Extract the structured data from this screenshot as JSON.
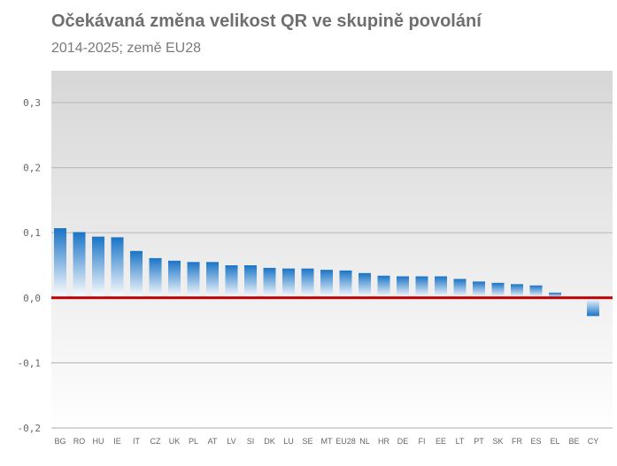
{
  "chart_data": {
    "type": "bar",
    "title": "Očekávaná změna velikost QR ve skupině povolání",
    "subtitle": "2014-2025; země EU28",
    "categories": [
      "BG",
      "RO",
      "HU",
      "IE",
      "IT",
      "CZ",
      "UK",
      "PL",
      "AT",
      "LV",
      "SI",
      "DK",
      "LU",
      "SE",
      "MT",
      "EU28",
      "NL",
      "HR",
      "DE",
      "FI",
      "EE",
      "LT",
      "PT",
      "SK",
      "FR",
      "ES",
      "EL",
      "BE",
      "CY"
    ],
    "values": [
      0.107,
      0.101,
      0.094,
      0.093,
      0.072,
      0.061,
      0.057,
      0.055,
      0.055,
      0.05,
      0.05,
      0.046,
      0.045,
      0.045,
      0.043,
      0.042,
      0.038,
      0.034,
      0.033,
      0.033,
      0.033,
      0.029,
      0.025,
      0.023,
      0.021,
      0.019,
      0.008,
      0.0,
      -0.028
    ],
    "ylim": [
      -0.2,
      0.3
    ],
    "yticks": [
      0.3,
      0.2,
      0.1,
      0.0,
      -0.1,
      -0.2
    ],
    "ytick_labels": [
      "0,3",
      "0,2",
      "0,1",
      "0,0",
      "-0,1",
      "-0,2"
    ],
    "grid": true,
    "colors": {
      "bar_top": "#1a74c6",
      "bar_bottom": "#ffffff",
      "zero_line": "#c00000",
      "plot_bg_top": "#d7d7d7",
      "plot_bg_bottom": "#ffffff",
      "grid": "#bdbdbd"
    }
  }
}
